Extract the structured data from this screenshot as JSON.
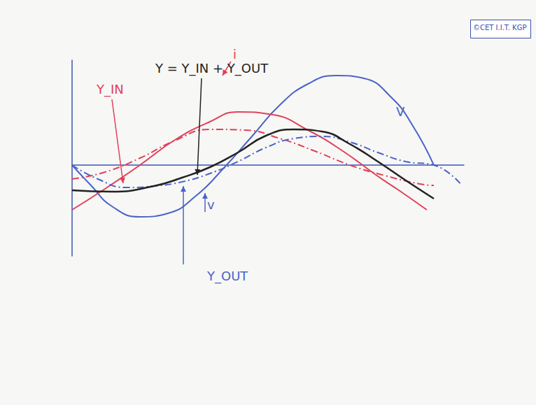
{
  "chart_data": {
    "type": "line",
    "tick_labels": false,
    "grid": false,
    "xlim": [
      0,
      560
    ],
    "ylim": [
      -130,
      150
    ],
    "xticks": [],
    "yticks": [],
    "annotations": [
      "V",
      "©CET I.I.T. KGP"
    ],
    "series": [
      {
        "name": "v",
        "color": "#4a63c8",
        "line_style": "solid",
        "marker": "none",
        "x": [
          0,
          27,
          57,
          97,
          137,
          177,
          217,
          257,
          297,
          337,
          377,
          417,
          457,
          487,
          517
        ],
        "values": [
          0,
          -29,
          -59,
          -74,
          -69,
          -44,
          -4,
          41,
          86,
          116,
          128,
          124,
          96,
          56,
          0
        ]
      },
      {
        "name": "i",
        "color": "#e0405a",
        "line_style": "solid",
        "marker": "none",
        "x": [
          0,
          47,
          97,
          147,
          197,
          237,
          287,
          337,
          387,
          437,
          467,
          507
        ],
        "values": [
          -64,
          -34,
          0,
          36,
          62,
          76,
          72,
          50,
          20,
          -16,
          -36,
          -64
        ]
      },
      {
        "name": "Y_IN",
        "color": "#e0405a",
        "line_style": "dashdot",
        "marker": "none",
        "x": [
          0,
          47,
          97,
          147,
          197,
          247,
          297,
          347,
          397,
          447,
          497,
          517
        ],
        "values": [
          -20,
          -10,
          10,
          35,
          51,
          50,
          38,
          20,
          0,
          -15,
          -27,
          -29
        ]
      },
      {
        "name": "Y_OUT",
        "color": "#4a63c8",
        "line_style": "dashdot",
        "marker": "none",
        "x": [
          0,
          37,
          77,
          117,
          157,
          197,
          237,
          277,
          317,
          357,
          397,
          437,
          477,
          517,
          557
        ],
        "values": [
          0,
          -20,
          -32,
          -30,
          -24,
          -12,
          5,
          25,
          38,
          41,
          33,
          18,
          5,
          0,
          -29
        ]
      },
      {
        "name": "Y = Y_IN + Y_OUT",
        "color": "#222222",
        "line_style": "solid",
        "marker": "none",
        "x": [
          0,
          57,
          117,
          157,
          197,
          237,
          277,
          317,
          357,
          397,
          437,
          477,
          517
        ],
        "values": [
          -36,
          -38,
          -30,
          -18,
          -3,
          18,
          42,
          51,
          48,
          30,
          5,
          -22,
          -48
        ]
      }
    ]
  }
}
